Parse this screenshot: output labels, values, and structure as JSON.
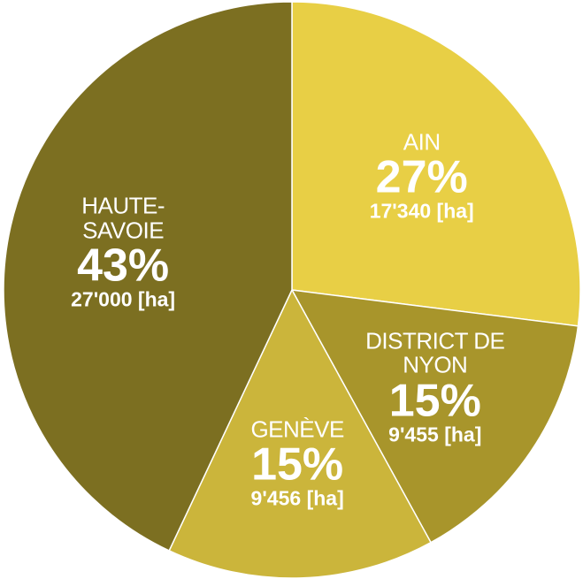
{
  "chart_data": {
    "type": "pie",
    "categories": [
      "AIN",
      "DISTRICT DE NYON",
      "GENÈVE",
      "HAUTE-SAVOIE"
    ],
    "values": [
      27,
      15,
      15,
      43
    ],
    "value_labels": [
      "27%",
      "15%",
      "15%",
      "43%"
    ],
    "area_labels": [
      "17'340 [ha]",
      "9'455 [ha]",
      "9'456 [ha]",
      "27'000 [ha]"
    ],
    "colors": [
      "#e8cf45",
      "#a8952b",
      "#cbb53b",
      "#7c6f21"
    ]
  }
}
